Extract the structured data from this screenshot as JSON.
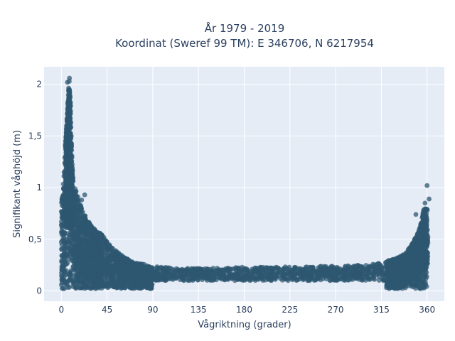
{
  "chart_data": {
    "type": "scatter",
    "title": "År 1979 - 2019",
    "subtitle": "Koordinat (Sweref 99 TM): E 346706, N 6217954",
    "xlabel": "Vågriktning (grader)",
    "ylabel": "Signifikant våghöjd (m)",
    "xlim": [
      -17,
      377
    ],
    "ylim": [
      -0.1,
      2.17
    ],
    "x_ticks": [
      0,
      45,
      90,
      135,
      180,
      225,
      270,
      315,
      360
    ],
    "x_tick_labels": [
      "0",
      "45",
      "90",
      "135",
      "180",
      "225",
      "270",
      "315",
      "360"
    ],
    "y_ticks": [
      0,
      0.5,
      1,
      1.5,
      2
    ],
    "y_tick_labels": [
      "0",
      "0,5",
      "1",
      "1,5",
      "2"
    ],
    "grid": true,
    "marker_color": "#2d5770",
    "background_color": "#e5ecf6",
    "envelope": {
      "direction_deg": [
        0,
        2,
        4,
        6,
        7,
        8,
        9,
        10,
        12,
        15,
        20,
        25,
        30,
        35,
        40,
        45,
        50,
        55,
        60,
        65,
        70,
        75,
        80,
        85,
        90,
        100,
        120,
        150,
        180,
        210,
        240,
        270,
        290,
        305,
        315,
        325,
        335,
        340,
        345,
        350,
        353,
        355,
        357,
        360
      ],
      "max_height_m": [
        0.85,
        1.05,
        1.45,
        1.75,
        1.95,
        2.05,
        1.85,
        1.4,
        1.05,
        0.95,
        0.8,
        0.7,
        0.62,
        0.58,
        0.55,
        0.48,
        0.42,
        0.38,
        0.34,
        0.31,
        0.29,
        0.27,
        0.26,
        0.25,
        0.24,
        0.23,
        0.22,
        0.22,
        0.23,
        0.23,
        0.24,
        0.24,
        0.25,
        0.26,
        0.28,
        0.3,
        0.34,
        0.38,
        0.45,
        0.55,
        0.62,
        0.72,
        0.8,
        0.8
      ]
    },
    "outliers": [
      {
        "x": 360,
        "y": 1.02
      },
      {
        "x": 362,
        "y": 0.89
      },
      {
        "x": 358,
        "y": 0.85
      },
      {
        "x": 349,
        "y": 0.74
      },
      {
        "x": 23,
        "y": 0.93
      },
      {
        "x": 20,
        "y": 0.88
      },
      {
        "x": 8,
        "y": 2.06
      },
      {
        "x": 6,
        "y": 2.02
      }
    ]
  }
}
